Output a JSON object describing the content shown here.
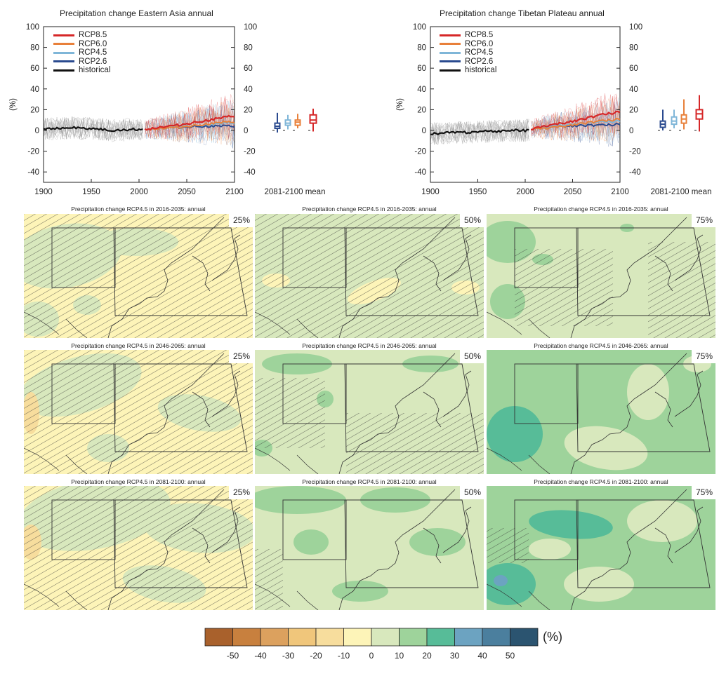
{
  "timeseries": [
    {
      "title": "Precipitation change Eastern Asia annual",
      "ylabel": "(%)",
      "mean_label": "2081-2100 mean"
    },
    {
      "title": "Precipitation change Tibetan Plateau annual",
      "ylabel": "(%)",
      "mean_label": "2081-2100 mean"
    }
  ],
  "legend": [
    "RCP8.5",
    "RCP6.0",
    "RCP4.5",
    "RCP2.6",
    "historical"
  ],
  "colors": {
    "rcp85": "#d62728",
    "rcp60": "#e8803a",
    "rcp45": "#7fb6d8",
    "rcp26": "#2a4a8f",
    "historical": "#111111",
    "model_spread": "#9a9a9a"
  },
  "maps": {
    "titles": [
      "Precipitation change RCP4.5 in 2016-2035: annual",
      "Precipitation change RCP4.5 in 2046-2065: annual",
      "Precipitation change RCP4.5 in 2081-2100: annual"
    ],
    "percentiles": [
      "25%",
      "50%",
      "75%"
    ]
  },
  "colorbar": {
    "unit": "(%)",
    "ticks": [
      "-50",
      "-40",
      "-30",
      "-20",
      "-10",
      "0",
      "10",
      "20",
      "30",
      "40",
      "50"
    ],
    "colors": [
      "#a9612c",
      "#c8803e",
      "#dca15e",
      "#f0c67b",
      "#f7dd9d",
      "#fdf4b8",
      "#d8e8bd",
      "#9ed39b",
      "#57bc98",
      "#6ca3c1",
      "#4b7f9e",
      "#2b5470"
    ]
  },
  "chart_data": [
    {
      "type": "line",
      "title": "Precipitation change Eastern Asia annual",
      "ylabel": "(%)",
      "xlim": [
        1900,
        2100
      ],
      "ylim": [
        -50,
        100
      ],
      "x_ticks": [
        1900,
        1950,
        2000,
        2050,
        2100
      ],
      "y_ticks": [
        -40,
        -20,
        0,
        20,
        40,
        60,
        80,
        100
      ],
      "series": [
        {
          "name": "historical",
          "x": [
            1900,
            1910,
            1920,
            1930,
            1940,
            1950,
            1960,
            1970,
            1980,
            1990,
            2000,
            2005
          ],
          "values": [
            2,
            2,
            2,
            3,
            2,
            2,
            1,
            0,
            0,
            1,
            1,
            1
          ]
        },
        {
          "name": "RCP2.6",
          "x": [
            2006,
            2020,
            2040,
            2060,
            2080,
            2100
          ],
          "values": [
            1,
            2,
            3,
            4,
            4,
            4
          ]
        },
        {
          "name": "RCP4.5",
          "x": [
            2006,
            2020,
            2040,
            2060,
            2080,
            2100
          ],
          "values": [
            1,
            2,
            4,
            5,
            6,
            7
          ]
        },
        {
          "name": "RCP6.0",
          "x": [
            2006,
            2020,
            2040,
            2060,
            2080,
            2100
          ],
          "values": [
            1,
            2,
            3,
            5,
            7,
            8
          ]
        },
        {
          "name": "RCP8.5",
          "x": [
            2006,
            2020,
            2040,
            2060,
            2080,
            2100
          ],
          "values": [
            1,
            3,
            5,
            8,
            11,
            14
          ]
        }
      ],
      "boxes_2081_2100": [
        {
          "name": "RCP2.6",
          "min": -2,
          "q1": 2,
          "median": 4,
          "q3": 7,
          "max": 17
        },
        {
          "name": "RCP4.5",
          "min": 1,
          "q1": 5,
          "median": 7,
          "q3": 10,
          "max": 15
        },
        {
          "name": "RCP6.0",
          "min": 2,
          "q1": 5,
          "median": 8,
          "q3": 10,
          "max": 16
        },
        {
          "name": "RCP8.5",
          "min": -1,
          "q1": 7,
          "median": 10,
          "q3": 15,
          "max": 21
        }
      ]
    },
    {
      "type": "line",
      "title": "Precipitation change Tibetan Plateau annual",
      "ylabel": "(%)",
      "xlim": [
        1900,
        2100
      ],
      "ylim": [
        -50,
        100
      ],
      "x_ticks": [
        1900,
        1950,
        2000,
        2050,
        2100
      ],
      "y_ticks": [
        -40,
        -20,
        0,
        20,
        40,
        60,
        80,
        100
      ],
      "series": [
        {
          "name": "historical",
          "x": [
            1900,
            1910,
            1920,
            1930,
            1940,
            1950,
            1960,
            1970,
            1980,
            1990,
            2000,
            2005
          ],
          "values": [
            -3,
            -3,
            -2,
            -2,
            -2,
            -1,
            -1,
            -1,
            0,
            0,
            0,
            1
          ]
        },
        {
          "name": "RCP2.6",
          "x": [
            2006,
            2020,
            2040,
            2060,
            2080,
            2100
          ],
          "values": [
            1,
            2,
            4,
            5,
            5,
            6
          ]
        },
        {
          "name": "RCP4.5",
          "x": [
            2006,
            2020,
            2040,
            2060,
            2080,
            2100
          ],
          "values": [
            1,
            3,
            5,
            7,
            8,
            9
          ]
        },
        {
          "name": "RCP6.0",
          "x": [
            2006,
            2020,
            2040,
            2060,
            2080,
            2100
          ],
          "values": [
            1,
            2,
            4,
            7,
            9,
            11
          ]
        },
        {
          "name": "RCP8.5",
          "x": [
            2006,
            2020,
            2040,
            2060,
            2080,
            2100
          ],
          "values": [
            1,
            4,
            7,
            11,
            15,
            18
          ]
        }
      ],
      "boxes_2081_2100": [
        {
          "name": "RCP2.6",
          "min": 0,
          "q1": 3,
          "median": 6,
          "q3": 9,
          "max": 20
        },
        {
          "name": "RCP4.5",
          "min": 2,
          "q1": 6,
          "median": 9,
          "q3": 13,
          "max": 20
        },
        {
          "name": "RCP6.0",
          "min": 1,
          "q1": 7,
          "median": 11,
          "q3": 15,
          "max": 30
        },
        {
          "name": "RCP8.5",
          "min": -1,
          "q1": 11,
          "median": 16,
          "q3": 20,
          "max": 34
        }
      ]
    }
  ]
}
